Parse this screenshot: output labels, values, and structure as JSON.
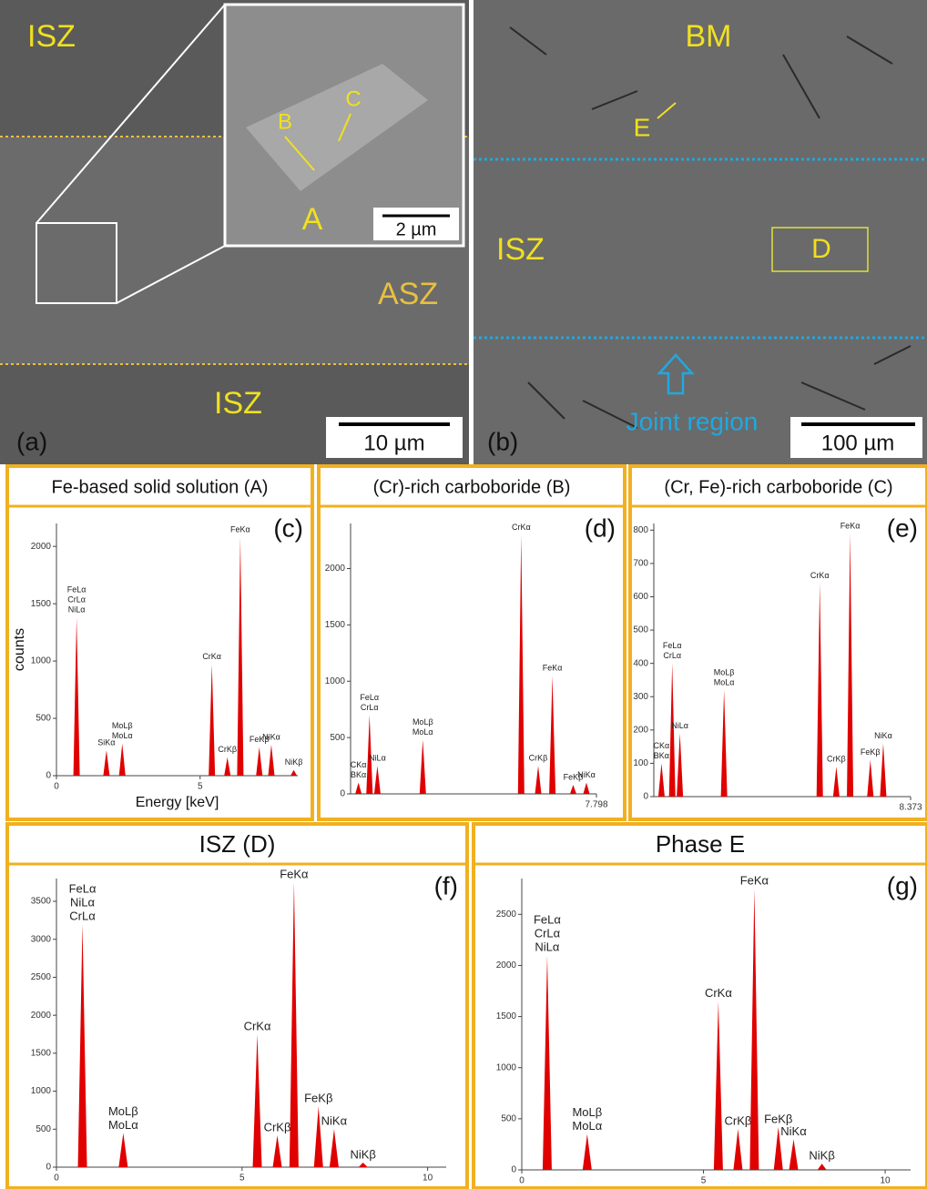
{
  "images": {
    "a": {
      "panel_label": "(a)",
      "labels": [
        "ISZ",
        "ASZ",
        "ISZ"
      ],
      "scale_bar": "10 µm",
      "inset": {
        "labels": [
          "A",
          "B",
          "C"
        ],
        "scale_bar": "2 µm"
      }
    },
    "b": {
      "panel_label": "(b)",
      "labels": [
        "BM",
        "ISZ",
        "D",
        "E"
      ],
      "annotation": "Joint region",
      "scale_bar": "100 µm"
    }
  },
  "chart_data": [
    {
      "type": "spectrum",
      "title": "Fe-based solid solution (A)",
      "panel_label": "(c)",
      "xlabel": "Energy [keV]",
      "ylabel": "counts",
      "xlim": [
        0,
        8.4
      ],
      "ylim": [
        0,
        2200
      ],
      "xticks": [
        0,
        5
      ],
      "yticks": [
        0,
        500,
        1000,
        1500,
        2000
      ],
      "peaks": [
        {
          "x": 0.7,
          "y": 1380,
          "labels": [
            "FeLα",
            "CrLα",
            "NiLα"
          ]
        },
        {
          "x": 1.74,
          "y": 220,
          "labels": [
            "SiKα"
          ]
        },
        {
          "x": 2.29,
          "y": 280,
          "labels": [
            "MoLβ",
            "MoLα"
          ]
        },
        {
          "x": 5.41,
          "y": 970,
          "labels": [
            "CrKα"
          ]
        },
        {
          "x": 5.95,
          "y": 160,
          "labels": [
            "CrKβ"
          ]
        },
        {
          "x": 6.4,
          "y": 2080,
          "labels": [
            "FeKα"
          ]
        },
        {
          "x": 7.06,
          "y": 250,
          "labels": [
            "FeKβ"
          ]
        },
        {
          "x": 7.48,
          "y": 270,
          "labels": [
            "NiKα"
          ]
        },
        {
          "x": 8.26,
          "y": 50,
          "labels": [
            "NiKβ"
          ]
        }
      ]
    },
    {
      "type": "spectrum",
      "title": "(Cr)-rich carboboride (B)",
      "panel_label": "(d)",
      "xlim": [
        0,
        7.798
      ],
      "ylim": [
        0,
        2400
      ],
      "xticks": [
        7.798
      ],
      "yticks": [
        0,
        500,
        1000,
        1500,
        2000
      ],
      "peaks": [
        {
          "x": 0.25,
          "y": 100,
          "labels": [
            "CKα",
            "BKα"
          ]
        },
        {
          "x": 0.6,
          "y": 700,
          "labels": [
            "FeLα",
            "CrLα"
          ]
        },
        {
          "x": 0.85,
          "y": 250,
          "labels": [
            "NiLα"
          ]
        },
        {
          "x": 2.29,
          "y": 480,
          "labels": [
            "MoLβ",
            "MoLα"
          ]
        },
        {
          "x": 5.41,
          "y": 2300,
          "labels": [
            "CrKα"
          ]
        },
        {
          "x": 5.95,
          "y": 250,
          "labels": [
            "CrKβ"
          ]
        },
        {
          "x": 6.4,
          "y": 1050,
          "labels": [
            "FeKα"
          ]
        },
        {
          "x": 7.06,
          "y": 80,
          "labels": [
            "FeKβ"
          ]
        },
        {
          "x": 7.48,
          "y": 100,
          "labels": [
            "NiKα"
          ]
        }
      ]
    },
    {
      "type": "spectrum",
      "title": "(Cr, Fe)-rich carboboride (C)",
      "panel_label": "(e)",
      "xlim": [
        0,
        8.373
      ],
      "ylim": [
        0,
        820
      ],
      "xticks": [
        8.373
      ],
      "yticks": [
        0,
        100,
        200,
        300,
        400,
        500,
        600,
        700,
        800
      ],
      "peaks": [
        {
          "x": 0.25,
          "y": 100,
          "labels": [
            "CKα",
            "BKα"
          ]
        },
        {
          "x": 0.6,
          "y": 400,
          "labels": [
            "FeLα",
            "CrLα"
          ]
        },
        {
          "x": 0.85,
          "y": 190,
          "labels": [
            "NiLα"
          ]
        },
        {
          "x": 2.29,
          "y": 320,
          "labels": [
            "MoLβ",
            "MoLα"
          ]
        },
        {
          "x": 5.41,
          "y": 640,
          "labels": [
            "CrKα"
          ]
        },
        {
          "x": 5.95,
          "y": 90,
          "labels": [
            "CrKβ"
          ]
        },
        {
          "x": 6.4,
          "y": 790,
          "labels": [
            "FeKα"
          ]
        },
        {
          "x": 7.06,
          "y": 110,
          "labels": [
            "FeKβ"
          ]
        },
        {
          "x": 7.48,
          "y": 160,
          "labels": [
            "NiKα"
          ]
        }
      ]
    },
    {
      "type": "spectrum",
      "title": "ISZ (D)",
      "panel_label": "(f)",
      "xlim": [
        0,
        10.5
      ],
      "ylim": [
        0,
        3800
      ],
      "xticks": [
        0,
        5,
        10
      ],
      "yticks": [
        0,
        500,
        1000,
        1500,
        2000,
        2500,
        3000,
        3500
      ],
      "peaks": [
        {
          "x": 0.7,
          "y": 3200,
          "labels": [
            "FeLα",
            "NiLα",
            "CrLα"
          ]
        },
        {
          "x": 1.8,
          "y": 450,
          "labels": [
            "MoLβ",
            "MoLα"
          ]
        },
        {
          "x": 5.41,
          "y": 1750,
          "labels": [
            "CrKα"
          ]
        },
        {
          "x": 5.95,
          "y": 420,
          "labels": [
            "CrKβ"
          ]
        },
        {
          "x": 6.4,
          "y": 3750,
          "labels": [
            "FeKα"
          ]
        },
        {
          "x": 7.06,
          "y": 800,
          "labels": [
            "FeKβ"
          ]
        },
        {
          "x": 7.48,
          "y": 500,
          "labels": [
            "NiKα"
          ]
        },
        {
          "x": 8.26,
          "y": 60,
          "labels": [
            "NiKβ"
          ]
        }
      ]
    },
    {
      "type": "spectrum",
      "title": "Phase E",
      "panel_label": "(g)",
      "xlim": [
        0,
        10.7
      ],
      "ylim": [
        0,
        2850
      ],
      "xticks": [
        0,
        5,
        10
      ],
      "yticks": [
        0,
        500,
        1000,
        1500,
        2000,
        2500
      ],
      "peaks": [
        {
          "x": 0.7,
          "y": 2100,
          "labels": [
            "FeLα",
            "CrLα",
            "NiLα"
          ]
        },
        {
          "x": 1.8,
          "y": 350,
          "labels": [
            "MoLβ",
            "MoLα"
          ]
        },
        {
          "x": 5.41,
          "y": 1650,
          "labels": [
            "CrKα"
          ]
        },
        {
          "x": 5.95,
          "y": 400,
          "labels": [
            "CrKβ"
          ]
        },
        {
          "x": 6.4,
          "y": 2750,
          "labels": [
            "FeKα"
          ]
        },
        {
          "x": 7.06,
          "y": 420,
          "labels": [
            "FeKβ"
          ]
        },
        {
          "x": 7.48,
          "y": 300,
          "labels": [
            "NiKα"
          ]
        },
        {
          "x": 8.26,
          "y": 60,
          "labels": [
            "NiKβ"
          ]
        }
      ]
    }
  ]
}
